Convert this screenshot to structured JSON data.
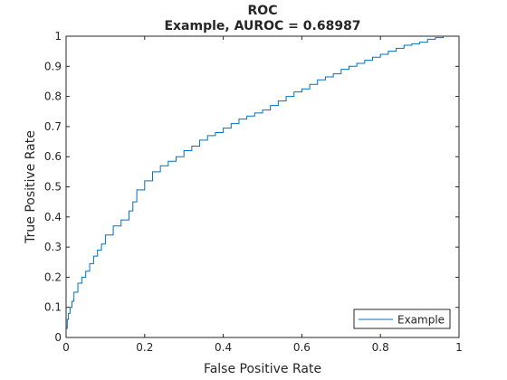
{
  "chart_data": {
    "type": "line",
    "title": "ROC",
    "subtitle": "Example, AUROC = 0.68987",
    "xlabel": "False Positive Rate",
    "ylabel": "True Positive Rate",
    "xlim": [
      0,
      1
    ],
    "ylim": [
      0,
      1
    ],
    "xticks": [
      "0",
      "0.2",
      "0.4",
      "0.6",
      "0.8",
      "1"
    ],
    "yticks": [
      "0",
      "0.1",
      "0.2",
      "0.3",
      "0.4",
      "0.5",
      "0.6",
      "0.7",
      "0.8",
      "0.9",
      "1"
    ],
    "grid": false,
    "legend_position": "bottom-right",
    "colors": {
      "line": "#0072bd",
      "axes": "#262626",
      "legend_border": "#262626"
    },
    "series": [
      {
        "name": "Example",
        "x": [
          0,
          0.003,
          0.006,
          0.01,
          0.015,
          0.02,
          0.03,
          0.04,
          0.05,
          0.06,
          0.07,
          0.08,
          0.09,
          0.1,
          0.12,
          0.14,
          0.16,
          0.17,
          0.18,
          0.2,
          0.22,
          0.24,
          0.26,
          0.28,
          0.3,
          0.32,
          0.34,
          0.36,
          0.38,
          0.4,
          0.42,
          0.44,
          0.46,
          0.48,
          0.5,
          0.52,
          0.54,
          0.56,
          0.58,
          0.6,
          0.62,
          0.64,
          0.66,
          0.68,
          0.7,
          0.72,
          0.74,
          0.76,
          0.78,
          0.8,
          0.82,
          0.84,
          0.86,
          0.88,
          0.9,
          0.92,
          0.94,
          0.96,
          0.98,
          1.0
        ],
        "y": [
          0,
          0.03,
          0.06,
          0.08,
          0.1,
          0.12,
          0.15,
          0.18,
          0.2,
          0.22,
          0.245,
          0.27,
          0.29,
          0.31,
          0.34,
          0.37,
          0.39,
          0.42,
          0.45,
          0.49,
          0.52,
          0.55,
          0.57,
          0.585,
          0.6,
          0.62,
          0.635,
          0.655,
          0.67,
          0.68,
          0.695,
          0.71,
          0.725,
          0.735,
          0.745,
          0.755,
          0.77,
          0.785,
          0.8,
          0.815,
          0.825,
          0.84,
          0.855,
          0.865,
          0.875,
          0.89,
          0.9,
          0.91,
          0.92,
          0.93,
          0.94,
          0.95,
          0.96,
          0.97,
          0.975,
          0.98,
          0.99,
          0.995,
          1.0,
          1.0
        ]
      }
    ]
  }
}
